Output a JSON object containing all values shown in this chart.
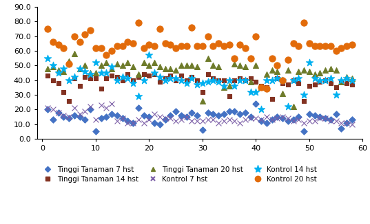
{
  "title": "",
  "xlim": [
    -1,
    60
  ],
  "ylim": [
    0,
    90
  ],
  "yticks": [
    0.0,
    10.0,
    20.0,
    30.0,
    40.0,
    50.0,
    60.0,
    70.0,
    80.0,
    90.0
  ],
  "xticks": [
    0,
    10,
    20,
    30,
    40,
    50,
    60
  ],
  "series": {
    "tinggi_7": {
      "x": [
        1,
        2,
        3,
        4,
        5,
        6,
        7,
        8,
        9,
        10,
        11,
        12,
        13,
        14,
        15,
        16,
        17,
        18,
        19,
        20,
        21,
        22,
        23,
        24,
        25,
        26,
        27,
        28,
        29,
        30,
        31,
        32,
        33,
        34,
        35,
        36,
        37,
        38,
        39,
        40,
        41,
        42,
        43,
        44,
        45,
        46,
        47,
        48,
        49,
        50,
        51,
        52,
        53,
        54,
        55,
        56,
        57,
        58
      ],
      "y": [
        20,
        13,
        18,
        15,
        14,
        16,
        15,
        13,
        20,
        5,
        14,
        15,
        17,
        16,
        14,
        12,
        11,
        21,
        16,
        15,
        11,
        10,
        13,
        16,
        19,
        16,
        15,
        18,
        16,
        6,
        18,
        17,
        16,
        17,
        19,
        19,
        17,
        18,
        15,
        24,
        12,
        11,
        13,
        15,
        14,
        12,
        13,
        15,
        5,
        17,
        16,
        15,
        14,
        13,
        17,
        7,
        11,
        13
      ],
      "color": "#4472C4",
      "marker": "D",
      "label": "Tinggi Tanaman 7 hst",
      "markersize": 5
    },
    "tinggi_14": {
      "x": [
        1,
        2,
        3,
        4,
        5,
        6,
        7,
        8,
        9,
        10,
        11,
        12,
        13,
        14,
        15,
        16,
        17,
        18,
        19,
        20,
        21,
        22,
        23,
        24,
        25,
        26,
        27,
        28,
        29,
        30,
        31,
        32,
        33,
        34,
        35,
        36,
        37,
        38,
        39,
        40,
        41,
        42,
        43,
        44,
        45,
        46,
        47,
        48,
        49,
        50,
        51,
        52,
        53,
        54,
        55,
        56,
        57,
        58
      ],
      "y": [
        43,
        40,
        38,
        32,
        26,
        41,
        36,
        42,
        41,
        41,
        34,
        41,
        43,
        42,
        40,
        44,
        40,
        42,
        44,
        43,
        44,
        39,
        41,
        43,
        40,
        43,
        40,
        42,
        40,
        32,
        44,
        41,
        40,
        40,
        29,
        40,
        41,
        40,
        41,
        39,
        36,
        35,
        27,
        41,
        38,
        37,
        40,
        38,
        26,
        36,
        37,
        39,
        40,
        38,
        35,
        39,
        38,
        37
      ],
      "color": "#833222",
      "marker": "s",
      "label": "Tinggi Tanaman 14 hst",
      "markersize": 5
    },
    "tinggi_20": {
      "x": [
        1,
        2,
        3,
        4,
        5,
        6,
        7,
        8,
        9,
        10,
        11,
        12,
        13,
        14,
        15,
        16,
        17,
        18,
        19,
        20,
        21,
        22,
        23,
        24,
        25,
        26,
        27,
        28,
        29,
        30,
        31,
        32,
        33,
        34,
        35,
        36,
        37,
        38,
        39,
        40,
        41,
        42,
        43,
        44,
        45,
        46,
        47,
        48,
        49,
        50,
        51,
        52,
        53,
        54,
        55,
        56,
        57,
        58
      ],
      "y": [
        48,
        49,
        47,
        46,
        53,
        58,
        48,
        50,
        45,
        45,
        50,
        52,
        48,
        51,
        50,
        52,
        49,
        44,
        52,
        50,
        52,
        49,
        48,
        48,
        47,
        50,
        50,
        50,
        49,
        26,
        55,
        50,
        49,
        35,
        36,
        51,
        50,
        49,
        39,
        50,
        35,
        44,
        47,
        46,
        31,
        47,
        22,
        46,
        47,
        46,
        44,
        45,
        47,
        48,
        47,
        39,
        42,
        41
      ],
      "color": "#6E7B2A",
      "marker": "^",
      "label": "Tinggi Tanaman 20 hst",
      "markersize": 6
    },
    "kontrol_7": {
      "x": [
        1,
        2,
        3,
        4,
        5,
        6,
        7,
        8,
        9,
        10,
        11,
        12,
        13,
        14,
        15,
        16,
        17,
        18,
        19,
        20,
        21,
        22,
        23,
        24,
        25,
        26,
        27,
        28,
        29,
        30,
        31,
        32,
        33,
        34,
        35,
        36,
        37,
        38,
        39,
        40,
        41,
        42,
        43,
        44,
        45,
        46,
        47,
        48,
        49,
        50,
        51,
        52,
        53,
        54,
        55,
        56,
        57,
        58
      ],
      "y": [
        21,
        20,
        18,
        16,
        15,
        21,
        17,
        19,
        22,
        13,
        23,
        21,
        24,
        12,
        14,
        11,
        11,
        13,
        11,
        13,
        17,
        15,
        14,
        14,
        12,
        13,
        15,
        12,
        12,
        12,
        13,
        13,
        11,
        12,
        13,
        12,
        11,
        13,
        14,
        14,
        13,
        15,
        13,
        14,
        15,
        14,
        12,
        13,
        11,
        12,
        12,
        14,
        14,
        12,
        12,
        11,
        11,
        10
      ],
      "color": "#7B5EA7",
      "marker": "x",
      "label": "Kontrol 7 hst",
      "markersize": 6
    },
    "kontrol_14": {
      "x": [
        1,
        2,
        3,
        4,
        5,
        6,
        7,
        8,
        9,
        10,
        11,
        12,
        13,
        14,
        15,
        16,
        17,
        18,
        19,
        20,
        21,
        22,
        23,
        24,
        25,
        26,
        27,
        28,
        29,
        30,
        31,
        32,
        33,
        34,
        35,
        36,
        37,
        38,
        39,
        40,
        41,
        42,
        43,
        44,
        45,
        46,
        47,
        48,
        49,
        50,
        51,
        52,
        53,
        54,
        55,
        56,
        57,
        58
      ],
      "y": [
        55,
        50,
        45,
        48,
        40,
        42,
        48,
        46,
        44,
        52,
        45,
        45,
        49,
        40,
        42,
        41,
        38,
        29,
        40,
        57,
        45,
        42,
        40,
        41,
        41,
        40,
        38,
        41,
        37,
        38,
        39,
        40,
        39,
        36,
        40,
        36,
        40,
        40,
        32,
        32,
        20,
        40,
        40,
        41,
        40,
        22,
        40,
        41,
        30,
        52,
        41,
        40,
        40,
        41,
        30,
        40,
        41,
        40
      ],
      "color": "#00B0F0",
      "marker": "*",
      "label": "Kontrol 14 hst",
      "markersize": 8
    },
    "kontrol_20": {
      "x": [
        1,
        2,
        3,
        4,
        5,
        6,
        7,
        8,
        9,
        10,
        11,
        12,
        13,
        14,
        15,
        16,
        17,
        18,
        19,
        20,
        21,
        22,
        23,
        24,
        25,
        26,
        27,
        28,
        29,
        30,
        31,
        32,
        33,
        34,
        35,
        36,
        37,
        38,
        39,
        40,
        41,
        42,
        43,
        44,
        45,
        46,
        47,
        48,
        49,
        50,
        51,
        52,
        53,
        54,
        55,
        56,
        57,
        58
      ],
      "y": [
        75,
        66,
        64,
        62,
        51,
        70,
        66,
        71,
        74,
        62,
        62,
        57,
        60,
        63,
        63,
        66,
        65,
        79,
        62,
        64,
        63,
        75,
        65,
        64,
        62,
        63,
        63,
        76,
        63,
        63,
        70,
        63,
        65,
        63,
        64,
        55,
        64,
        62,
        55,
        70,
        35,
        34,
        55,
        50,
        40,
        54,
        65,
        63,
        79,
        65,
        63,
        63,
        63,
        63,
        60,
        62,
        63,
        64
      ],
      "color": "#E26B0A",
      "marker": "o",
      "label": "Kontrol 20 hst",
      "markersize": 7
    }
  },
  "legend_order": [
    "tinggi_7",
    "tinggi_14",
    "tinggi_20",
    "kontrol_7",
    "kontrol_14",
    "kontrol_20"
  ],
  "legend_fontsize": 7.5,
  "tick_fontsize": 8,
  "background_color": "#FFFFFF"
}
